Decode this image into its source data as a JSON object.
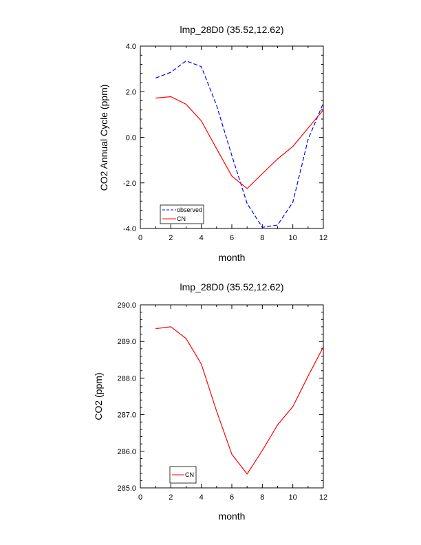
{
  "chart_data": [
    {
      "type": "line",
      "title": "lmp_28D0 (35.52,12.62)",
      "xlabel": "month",
      "ylabel": "CO2 Annual Cycle (ppm)",
      "xlim": [
        0,
        12
      ],
      "ylim": [
        -4,
        4
      ],
      "x_major_ticks": [
        0,
        2,
        4,
        6,
        8,
        10,
        12
      ],
      "x_tick_labels": [
        "0",
        "2",
        "4",
        "6",
        "8",
        "10",
        "12"
      ],
      "y_major_ticks": [
        -4,
        -2,
        0,
        2,
        4
      ],
      "y_tick_labels": [
        "-4.0",
        "-2.0",
        "0.0",
        "2.0",
        "4.0"
      ],
      "grid": false,
      "legend_position": "bottom-left",
      "x": [
        1,
        2,
        3,
        4,
        5,
        6,
        7,
        8,
        9,
        10,
        11,
        12
      ],
      "series": [
        {
          "name": "observed",
          "color": "#0000ff",
          "dash": "dashed",
          "values": [
            2.6,
            2.85,
            3.35,
            3.1,
            1.4,
            -0.8,
            -2.9,
            -3.95,
            -3.85,
            -2.85,
            -0.1,
            1.5
          ]
        },
        {
          "name": "CN",
          "color": "#ff0000",
          "dash": "solid",
          "values": [
            1.72,
            1.78,
            1.45,
            0.72,
            -0.5,
            -1.7,
            -2.25,
            -1.6,
            -0.95,
            -0.4,
            0.4,
            1.2
          ]
        }
      ]
    },
    {
      "type": "line",
      "title": "lmp_28D0 (35.52,12.62)",
      "xlabel": "month",
      "ylabel": "CO2 (ppm)",
      "xlim": [
        0,
        12
      ],
      "ylim": [
        285,
        290
      ],
      "x_major_ticks": [
        0,
        2,
        4,
        6,
        8,
        10,
        12
      ],
      "x_tick_labels": [
        "0",
        "2",
        "4",
        "6",
        "8",
        "10",
        "12"
      ],
      "y_major_ticks": [
        285,
        286,
        287,
        288,
        289,
        290
      ],
      "y_tick_labels": [
        "285.0",
        "286.0",
        "287.0",
        "288.0",
        "289.0",
        "290.0"
      ],
      "grid": false,
      "legend_position": "bottom-left",
      "x": [
        1,
        2,
        3,
        4,
        5,
        6,
        7,
        8,
        9,
        10,
        11,
        12
      ],
      "series": [
        {
          "name": "CN",
          "color": "#ff0000",
          "dash": "solid",
          "values": [
            289.35,
            289.4,
            289.08,
            288.38,
            287.1,
            285.92,
            285.38,
            286.02,
            286.72,
            287.22,
            288.05,
            288.85
          ]
        }
      ]
    }
  ]
}
